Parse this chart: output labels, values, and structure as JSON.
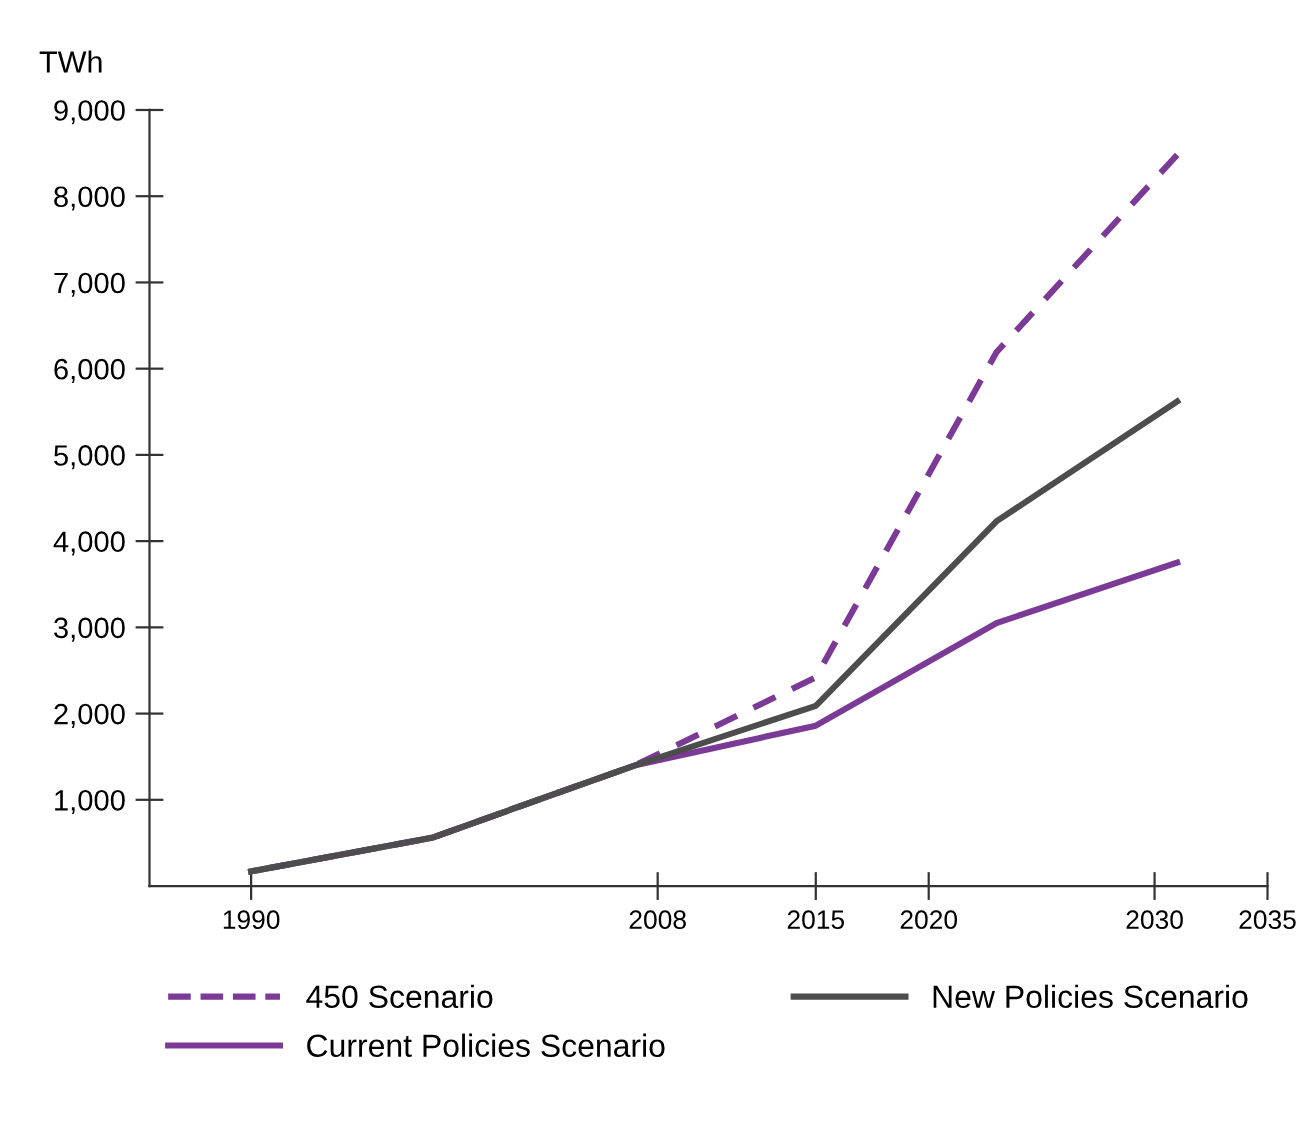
{
  "chart_data": {
    "type": "line",
    "ylabel": "TWh",
    "x": [
      1990,
      1998,
      2007,
      2015,
      2023,
      2031
    ],
    "series": [
      {
        "name": "450 Scenario",
        "color": "#7b3a96",
        "line_style": "dashed",
        "values": [
          170,
          560,
          1400,
          2420,
          6190,
          8480
        ]
      },
      {
        "name": "Current Policies Scenario",
        "color": "#7b3a96",
        "line_style": "solid",
        "values": [
          170,
          560,
          1400,
          1860,
          3050,
          3750
        ]
      },
      {
        "name": "New Policies Scenario",
        "color": "#4d4d4d",
        "line_style": "solid",
        "values": [
          170,
          560,
          1400,
          2090,
          4230,
          5620
        ]
      }
    ],
    "xlim": [
      1985.5,
      2035
    ],
    "xticks": [
      1990,
      2008,
      2015,
      2020,
      2030,
      2035
    ],
    "ylim": [
      0,
      9000
    ],
    "yticks": [
      {
        "value": 1000,
        "label": "1,000"
      },
      {
        "value": 2000,
        "label": "2,000"
      },
      {
        "value": 3000,
        "label": "3,000"
      },
      {
        "value": 4000,
        "label": "4,000"
      },
      {
        "value": 5000,
        "label": "5,000"
      },
      {
        "value": 6000,
        "label": "6,000"
      },
      {
        "value": 7000,
        "label": "7,000"
      },
      {
        "value": 8000,
        "label": "8,000"
      },
      {
        "value": 9000,
        "label": "9,000"
      }
    ],
    "grid": false,
    "legend": "bottom",
    "marker": "none"
  }
}
